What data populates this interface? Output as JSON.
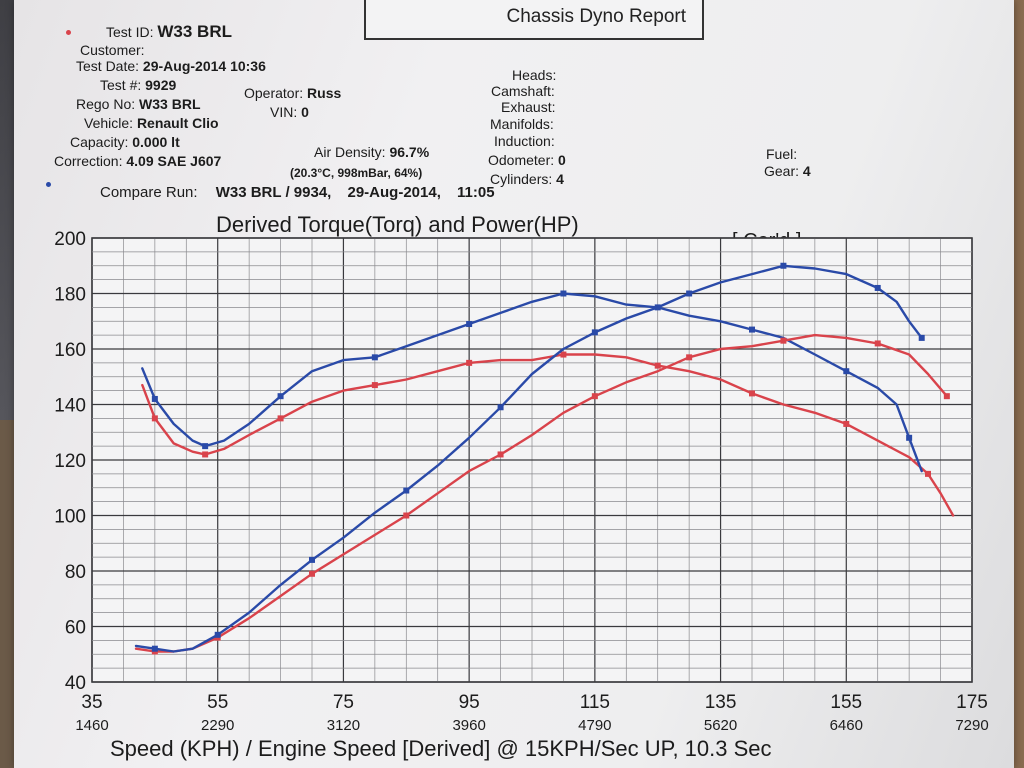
{
  "header": {
    "report_title": "Chassis Dyno Report",
    "test_id_label": "Test ID:",
    "test_id": "W33 BRL",
    "customer_label": "Customer:",
    "test_date_label": "Test Date:",
    "test_date": "29-Aug-2014 10:36",
    "test_no_label": "Test #:",
    "test_no": "9929",
    "operator_label": "Operator:",
    "operator": "Russ",
    "rego_label": "Rego No:",
    "rego": "W33 BRL",
    "vin_label": "VIN:",
    "vin": "0",
    "vehicle_label": "Vehicle:",
    "vehicle": "Renault Clio",
    "capacity_label": "Capacity:",
    "capacity": "0.000 lt",
    "air_density_label": "Air Density:",
    "air_density": "96.7%",
    "correction_label": "Correction:",
    "correction": "4.09 SAE J607",
    "conditions": "(20.3°C, 998mBar, 64%)",
    "heads_label": "Heads:",
    "camshaft_label": "Camshaft:",
    "exhaust_label": "Exhaust:",
    "manifolds_label": "Manifolds:",
    "induction_label": "Induction:",
    "odometer_label": "Odometer:",
    "odometer": "0",
    "cylinders_label": "Cylinders:",
    "cylinders": "4",
    "fuel_label": "Fuel:",
    "gear_label": "Gear:",
    "gear": "4",
    "compare_label": "Compare Run:",
    "compare_run": "W33 BRL / 9934,",
    "compare_date": "29-Aug-2014,",
    "compare_time": "11:05"
  },
  "colors": {
    "red": "#d9434b",
    "blue": "#2a4aa8",
    "grid": "#8a8a8e",
    "grid_major": "#3a3a3e"
  },
  "chart_data": {
    "type": "line",
    "title": "Derived Torque(Torq) and Power(HP)",
    "note": "[ Cor'd ]",
    "xlabel": "Speed (KPH) / Engine Speed [Derived] @ 15KPH/Sec UP, 10.3 Sec",
    "xlim": [
      35,
      175
    ],
    "ylim": [
      40,
      200
    ],
    "x_ticks": [
      35,
      55,
      75,
      95,
      115,
      135,
      155,
      175
    ],
    "rpm_ticks": [
      "1460",
      "2290",
      "3120",
      "3960",
      "4790",
      "5620",
      "6460",
      "7290"
    ],
    "y_ticks": [
      40,
      60,
      80,
      100,
      120,
      140,
      160,
      180,
      200
    ],
    "grid": true,
    "series": [
      {
        "color": "red",
        "points": [
          [
            43,
            147
          ],
          [
            45,
            135
          ],
          [
            48,
            126
          ],
          [
            51,
            123
          ],
          [
            53,
            122
          ],
          [
            56,
            124
          ],
          [
            60,
            129
          ],
          [
            65,
            135
          ],
          [
            70,
            141
          ],
          [
            75,
            145
          ],
          [
            80,
            147
          ],
          [
            85,
            149
          ],
          [
            90,
            152
          ],
          [
            95,
            155
          ],
          [
            100,
            156
          ],
          [
            105,
            156
          ],
          [
            110,
            158
          ],
          [
            115,
            158
          ],
          [
            120,
            157
          ],
          [
            125,
            154
          ],
          [
            130,
            152
          ],
          [
            135,
            149
          ],
          [
            140,
            144
          ],
          [
            145,
            140
          ],
          [
            150,
            137
          ],
          [
            155,
            133
          ],
          [
            160,
            127
          ],
          [
            165,
            121
          ],
          [
            168,
            115
          ],
          [
            170,
            108
          ],
          [
            172,
            100
          ]
        ]
      },
      {
        "color": "blue",
        "points": [
          [
            43,
            153
          ],
          [
            45,
            142
          ],
          [
            48,
            133
          ],
          [
            51,
            127
          ],
          [
            53,
            125
          ],
          [
            56,
            127
          ],
          [
            60,
            133
          ],
          [
            65,
            143
          ],
          [
            70,
            152
          ],
          [
            75,
            156
          ],
          [
            80,
            157
          ],
          [
            85,
            161
          ],
          [
            90,
            165
          ],
          [
            95,
            169
          ],
          [
            100,
            173
          ],
          [
            105,
            177
          ],
          [
            110,
            180
          ],
          [
            115,
            179
          ],
          [
            120,
            176
          ],
          [
            125,
            175
          ],
          [
            130,
            172
          ],
          [
            135,
            170
          ],
          [
            140,
            167
          ],
          [
            145,
            164
          ],
          [
            150,
            158
          ],
          [
            155,
            152
          ],
          [
            160,
            146
          ],
          [
            163,
            140
          ],
          [
            165,
            128
          ],
          [
            167,
            116
          ]
        ]
      },
      {
        "color": "red",
        "points": [
          [
            42,
            52
          ],
          [
            45,
            51
          ],
          [
            48,
            51
          ],
          [
            51,
            52
          ],
          [
            55,
            56
          ],
          [
            60,
            63
          ],
          [
            65,
            71
          ],
          [
            70,
            79
          ],
          [
            75,
            86
          ],
          [
            80,
            93
          ],
          [
            85,
            100
          ],
          [
            90,
            108
          ],
          [
            95,
            116
          ],
          [
            100,
            122
          ],
          [
            105,
            129
          ],
          [
            110,
            137
          ],
          [
            115,
            143
          ],
          [
            120,
            148
          ],
          [
            125,
            152
          ],
          [
            130,
            157
          ],
          [
            135,
            160
          ],
          [
            140,
            161
          ],
          [
            145,
            163
          ],
          [
            150,
            165
          ],
          [
            155,
            164
          ],
          [
            160,
            162
          ],
          [
            165,
            158
          ],
          [
            168,
            151
          ],
          [
            171,
            143
          ]
        ]
      },
      {
        "color": "blue",
        "points": [
          [
            42,
            53
          ],
          [
            45,
            52
          ],
          [
            48,
            51
          ],
          [
            51,
            52
          ],
          [
            55,
            57
          ],
          [
            60,
            65
          ],
          [
            65,
            75
          ],
          [
            70,
            84
          ],
          [
            75,
            92
          ],
          [
            80,
            101
          ],
          [
            85,
            109
          ],
          [
            90,
            118
          ],
          [
            95,
            128
          ],
          [
            100,
            139
          ],
          [
            105,
            151
          ],
          [
            110,
            160
          ],
          [
            115,
            166
          ],
          [
            120,
            171
          ],
          [
            125,
            175
          ],
          [
            130,
            180
          ],
          [
            135,
            184
          ],
          [
            140,
            187
          ],
          [
            145,
            190
          ],
          [
            150,
            189
          ],
          [
            155,
            187
          ],
          [
            160,
            182
          ],
          [
            163,
            177
          ],
          [
            165,
            170
          ],
          [
            167,
            164
          ]
        ]
      }
    ]
  }
}
